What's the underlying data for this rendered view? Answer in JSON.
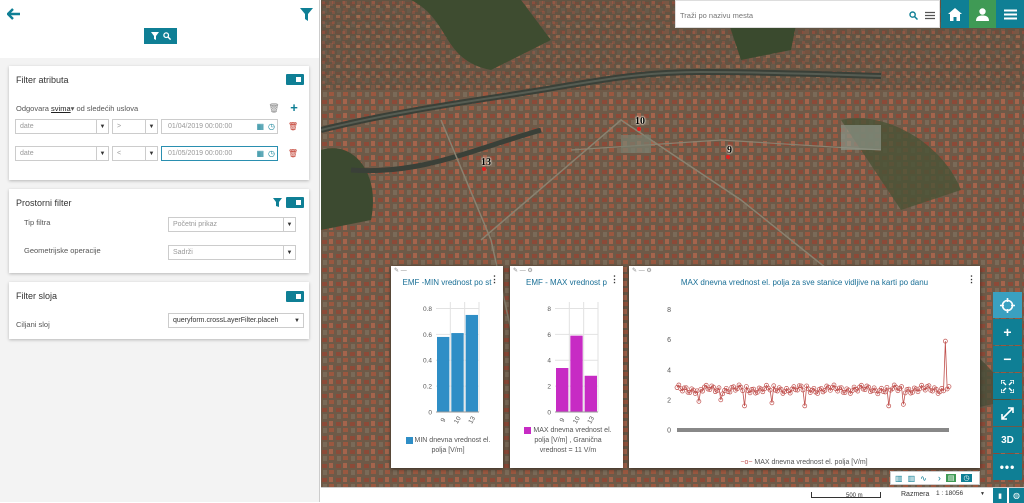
{
  "sidebar": {
    "attribute_filter": {
      "title": "Filter atributa",
      "match_prefix": "Odgovara",
      "match_mode": "svima",
      "match_suffix": "od sledećih uslova",
      "rows": [
        {
          "field": "date",
          "operator": ">",
          "value": "01/04/2019 00:00:00"
        },
        {
          "field": "date",
          "operator": "<",
          "value": "01/05/2019 00:00:00"
        }
      ]
    },
    "spatial_filter": {
      "title": "Prostorni filter",
      "type_label": "Tip filtra",
      "type_value": "Početni prikaz",
      "geo_label": "Geometrijske operacije",
      "geo_value": "Sadrži"
    },
    "layer_filter": {
      "title": "Filter sloja",
      "target_label": "Ciljani sloj",
      "target_value": "queryform.crossLayerFilter.placeh"
    }
  },
  "search": {
    "placeholder": "Traži po nazivu mesta"
  },
  "markers": [
    {
      "label": "10"
    },
    {
      "label": "9"
    },
    {
      "label": "13"
    }
  ],
  "widgets": {
    "min_chart": {
      "title": "EMF -MIN vrednost po st",
      "legend": "MIN dnevna vrednost el. polja [V/m]",
      "color": "#2f8ec6",
      "chart_data": {
        "type": "bar",
        "categories": [
          "9",
          "10",
          "13"
        ],
        "values": [
          0.58,
          0.61,
          0.75
        ],
        "yticks": [
          "0",
          "0.2",
          "0.4",
          "0.6",
          "0.8"
        ],
        "ylim": [
          0,
          0.85
        ]
      }
    },
    "max_chart": {
      "title": "EMF - MAX vrednost p",
      "legend": "MAX dnevna vrednost el. polja [V/m] , Granična vrednost = 11 V/m",
      "color": "#c72bc4",
      "chart_data": {
        "type": "bar",
        "categories": [
          "9",
          "10",
          "13"
        ],
        "values": [
          3.4,
          5.9,
          2.8
        ],
        "yticks": [
          "0",
          "2",
          "4",
          "6",
          "8"
        ],
        "ylim": [
          0,
          8.5
        ]
      }
    },
    "line_chart": {
      "title": "MAX dnevna vrednost el. polja za sve stanice vidljive na karti po danu",
      "legend": "MAX dnevna vrednost el. polja [V/m]",
      "color": "#c0504d",
      "chart_data": {
        "type": "line",
        "yticks": [
          "0",
          "2",
          "4",
          "6",
          "8"
        ],
        "ylim": [
          0,
          8.5
        ],
        "baseline": 2.7,
        "noise": 0.3,
        "dips": [
          {
            "at": 0.08,
            "value": 1.9
          },
          {
            "at": 0.16,
            "value": 2.0
          },
          {
            "at": 0.25,
            "value": 1.6
          },
          {
            "at": 0.35,
            "value": 1.8
          },
          {
            "at": 0.47,
            "value": 1.6
          },
          {
            "at": 0.78,
            "value": 1.6
          },
          {
            "at": 0.83,
            "value": 1.7
          }
        ],
        "spike": {
          "at": 0.985,
          "value": 5.9
        }
      }
    }
  },
  "footer": {
    "scale": "500 m",
    "ratio_label": "Razmera",
    "ratio_value": "1 : 18056"
  }
}
